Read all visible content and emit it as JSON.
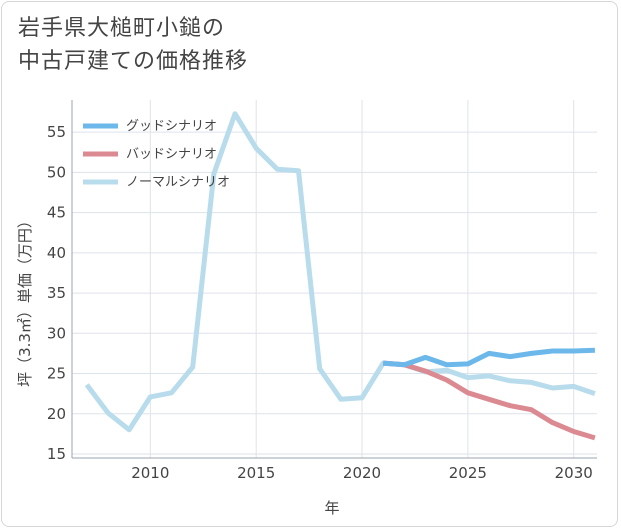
{
  "title": {
    "line1": "岩手県大槌町小鎚の",
    "line2": "中古戸建ての価格推移"
  },
  "chart_data": {
    "type": "line",
    "title": "岩手県大槌町小鎚の中古戸建ての価格推移",
    "xlabel": "年",
    "ylabel": "坪（3.3㎡）単価（万円）",
    "xlim": [
      2006.3,
      2031.1
    ],
    "ylim": [
      14.5,
      59
    ],
    "xticks": [
      2010,
      2015,
      2020,
      2025,
      2030
    ],
    "yticks": [
      15,
      20,
      25,
      30,
      35,
      40,
      45,
      50,
      55
    ],
    "legend_position": "top-left",
    "series": [
      {
        "name": "グッドシナリオ",
        "color": "#6cb8ea",
        "x": [
          2021,
          2022,
          2023,
          2024,
          2025,
          2026,
          2027,
          2028,
          2029,
          2030,
          2031
        ],
        "y": [
          26.3,
          26.1,
          27.0,
          26.1,
          26.2,
          27.5,
          27.1,
          27.5,
          27.8,
          27.8,
          27.9
        ]
      },
      {
        "name": "バッドシナリオ",
        "color": "#dc8a92",
        "x": [
          2021,
          2022,
          2023,
          2024,
          2025,
          2026,
          2027,
          2028,
          2029,
          2030,
          2031
        ],
        "y": [
          26.3,
          26.1,
          25.3,
          24.2,
          22.6,
          21.8,
          21.0,
          20.5,
          18.9,
          17.8,
          17.0
        ]
      },
      {
        "name": "ノーマルシナリオ",
        "color": "#b8dcec",
        "x": [
          2007,
          2008,
          2009,
          2010,
          2011,
          2012,
          2013,
          2014,
          2015,
          2016,
          2017,
          2018,
          2019,
          2020,
          2021,
          2022,
          2023,
          2024,
          2025,
          2026,
          2027,
          2028,
          2029,
          2030,
          2031
        ],
        "y": [
          23.6,
          20.1,
          18.0,
          22.1,
          22.6,
          25.8,
          49.8,
          57.3,
          53.0,
          50.4,
          50.2,
          25.6,
          21.8,
          22.0,
          26.3,
          26.1,
          25.2,
          25.4,
          24.5,
          24.7,
          24.1,
          23.9,
          23.2,
          23.4,
          22.5
        ]
      }
    ]
  }
}
